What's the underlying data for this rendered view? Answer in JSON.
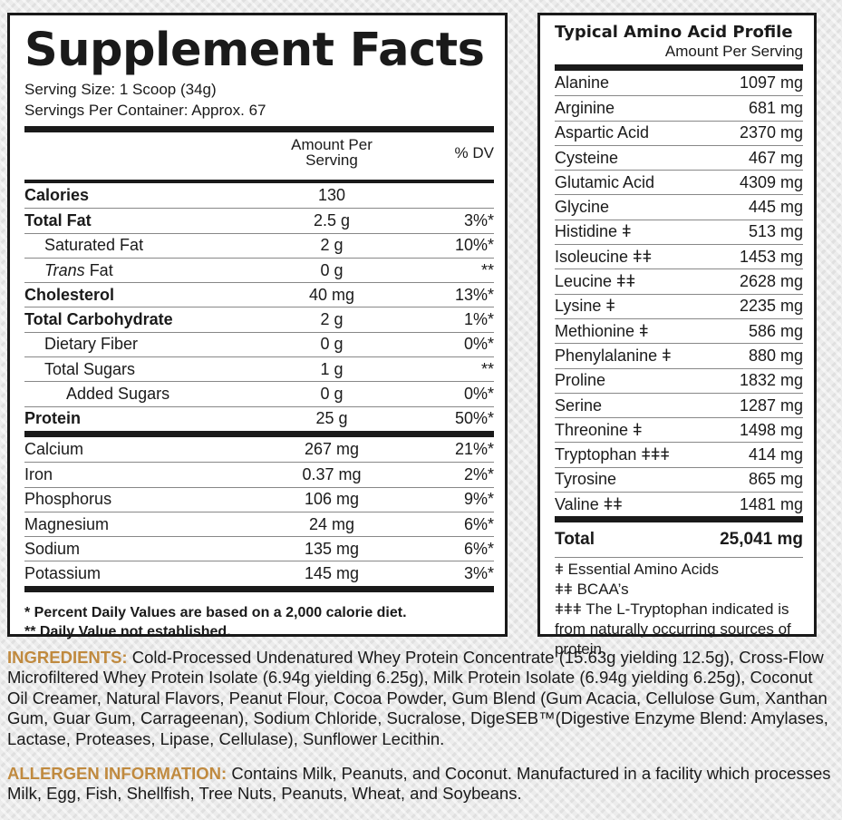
{
  "supplement_facts": {
    "title": "Supplement Facts",
    "serving_size": "Serving Size: 1 Scoop (34g)",
    "servings_per_container": "Servings Per Container: Approx. 67",
    "col_amount": "Amount Per Serving",
    "col_dv": "% DV",
    "rows_main": [
      {
        "name": "Calories",
        "amount": "130",
        "dv": ""
      },
      {
        "name": "Total Fat",
        "amount": "2.5 g",
        "dv": "3%*"
      },
      {
        "name": "Saturated Fat",
        "amount": "2 g",
        "dv": "10%*"
      },
      {
        "name_italic": "Trans",
        "name": " Fat",
        "amount": "0 g",
        "dv": "**"
      },
      {
        "name": "Cholesterol",
        "amount": "40 mg",
        "dv": "13%*"
      },
      {
        "name": "Total Carbohydrate",
        "amount": "2 g",
        "dv": "1%*"
      },
      {
        "name": "Dietary Fiber",
        "amount": "0 g",
        "dv": "0%*"
      },
      {
        "name": "Total Sugars",
        "amount": "1 g",
        "dv": "**"
      },
      {
        "name": "Added Sugars",
        "amount": "0 g",
        "dv": "0%*"
      },
      {
        "name": "Protein",
        "amount": "25 g",
        "dv": "50%*"
      }
    ],
    "rows_minerals": [
      {
        "name": "Calcium",
        "amount": "267 mg",
        "dv": "21%*"
      },
      {
        "name": "Iron",
        "amount": "0.37 mg",
        "dv": "2%*"
      },
      {
        "name": "Phosphorus",
        "amount": "106 mg",
        "dv": "9%*"
      },
      {
        "name": "Magnesium",
        "amount": "24 mg",
        "dv": "6%*"
      },
      {
        "name": "Sodium",
        "amount": "135 mg",
        "dv": "6%*"
      },
      {
        "name": "Potassium",
        "amount": "145 mg",
        "dv": "3%*"
      }
    ],
    "footnote_1": "* Percent Daily Values are based on a 2,000 calorie diet.",
    "footnote_2": "** Daily Value not established."
  },
  "amino_profile": {
    "title": "Typical Amino Acid Profile",
    "subtitle": "Amount Per Serving",
    "rows": [
      {
        "name": "Alanine",
        "amount": "1097 mg"
      },
      {
        "name": "Arginine",
        "amount": "681 mg"
      },
      {
        "name": "Aspartic Acid",
        "amount": "2370 mg"
      },
      {
        "name": "Cysteine",
        "amount": "467 mg"
      },
      {
        "name": "Glutamic Acid",
        "amount": "4309 mg"
      },
      {
        "name": "Glycine",
        "amount": "445 mg"
      },
      {
        "name": "Histidine ǂ",
        "amount": "513 mg"
      },
      {
        "name": "Isoleucine ǂǂ",
        "amount": "1453 mg"
      },
      {
        "name": "Leucine ǂǂ",
        "amount": "2628 mg"
      },
      {
        "name": "Lysine ǂ",
        "amount": "2235 mg"
      },
      {
        "name": "Methionine ǂ",
        "amount": "586 mg"
      },
      {
        "name": "Phenylalanine ǂ",
        "amount": "880 mg"
      },
      {
        "name": "Proline",
        "amount": "1832 mg"
      },
      {
        "name": "Serine",
        "amount": "1287 mg"
      },
      {
        "name": "Threonine ǂ",
        "amount": "1498 mg"
      },
      {
        "name": "Tryptophan ǂǂǂ",
        "amount": "414 mg"
      },
      {
        "name": "Tyrosine",
        "amount": "865 mg"
      },
      {
        "name": "Valine ǂǂ",
        "amount": "1481 mg"
      }
    ],
    "total_label": "Total",
    "total_amount": "25,041 mg",
    "note_1": "ǂ Essential Amino Acids",
    "note_2": "ǂǂ BCAA’s",
    "note_3": "ǂǂǂ The L-Tryptophan indicated is from naturally occurring sources of protein."
  },
  "ingredients": {
    "label": "INGREDIENTS:",
    "text": " Cold-Processed Undenatured Whey Protein Concentrate (15.63g yielding 12.5g), Cross-Flow Microfiltered Whey Protein Isolate (6.94g yielding 6.25g), Milk Protein Isolate (6.94g yielding 6.25g), Coconut Oil Creamer, Natural Flavors, Peanut Flour, Cocoa Powder, Gum Blend (Gum Acacia, Cellulose Gum, Xanthan Gum, Guar Gum, Carrageenan), Sodium Chloride, Sucralose, DigeSEB™(Digestive Enzyme Blend: Amylases, Lactase, Proteases, Lipase, Cellulase), Sunflower Lecithin."
  },
  "allergen": {
    "label": "ALLERGEN INFORMATION:",
    "text": " Contains Milk, Peanuts, and Coconut. Manufactured in a facility which processes Milk, Egg, Fish, Shellfish, Tree Nuts, Peanuts, Wheat, and Soybeans."
  }
}
